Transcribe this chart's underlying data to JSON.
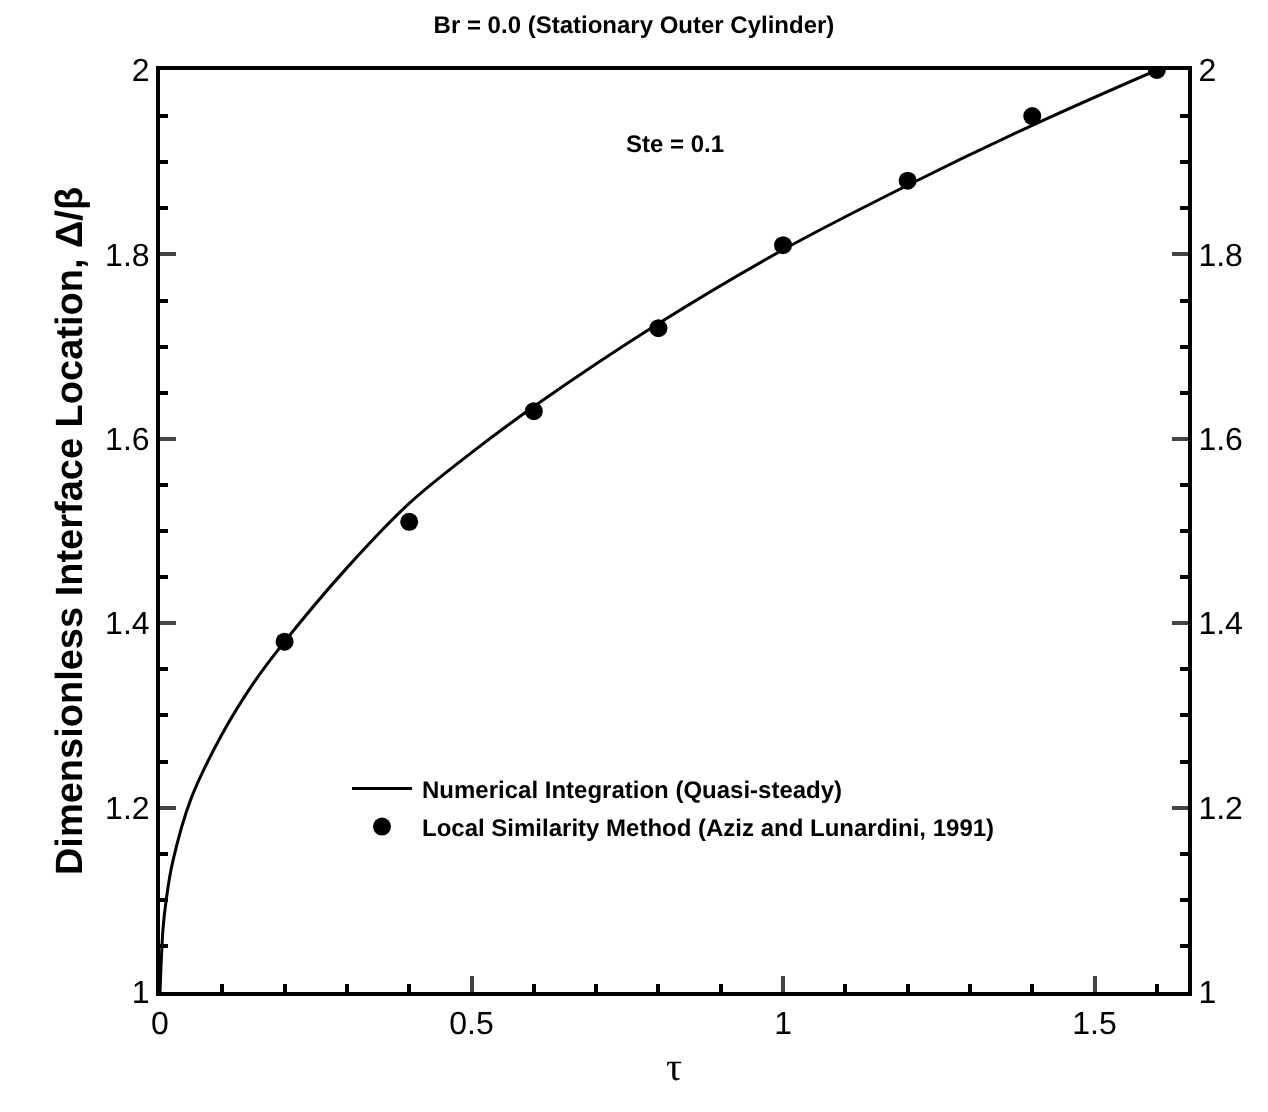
{
  "chart_data": {
    "type": "line",
    "title": "Br = 0.0 (Stationary Outer Cylinder)",
    "xlabel": "τ",
    "ylabel": "Dimensionless Interface Location, Δ/β",
    "annotations": [
      "Ste = 0.1"
    ],
    "xlim": [
      0,
      1.65
    ],
    "xticks": [
      0,
      0.5,
      1,
      1.5
    ],
    "ylim": [
      1,
      2
    ],
    "yticks": [
      1,
      1.2,
      1.4,
      1.6,
      1.8,
      2
    ],
    "y2lim": [
      1,
      2
    ],
    "y2ticks": [
      1,
      1.2,
      1.4,
      1.6,
      1.8,
      2
    ],
    "legend": "bottom",
    "series": [
      {
        "name": "Numerical Integration (Quasi-steady)",
        "color": "#000000",
        "marker": "none",
        "line_style": "solid",
        "x": [
          0,
          0.005,
          0.01,
          0.02,
          0.05,
          0.1,
          0.15,
          0.2,
          0.3,
          0.4,
          0.5,
          0.6,
          0.8,
          1.0,
          1.2,
          1.4,
          1.6
        ],
        "values": [
          1,
          1.07,
          1.1,
          1.14,
          1.21,
          1.28,
          1.335,
          1.38,
          1.46,
          1.53,
          1.585,
          1.635,
          1.725,
          1.805,
          1.875,
          1.94,
          2.0
        ]
      },
      {
        "name": "Local Similarity Method (Aziz and Lunardini, 1991)",
        "type": "scatter",
        "color": "#000000",
        "marker": "circle",
        "x": [
          0.2,
          0.4,
          0.6,
          0.8,
          1.0,
          1.2,
          1.4,
          1.6
        ],
        "values": [
          1.38,
          1.51,
          1.63,
          1.72,
          1.81,
          1.88,
          1.95,
          2.0
        ]
      }
    ]
  }
}
